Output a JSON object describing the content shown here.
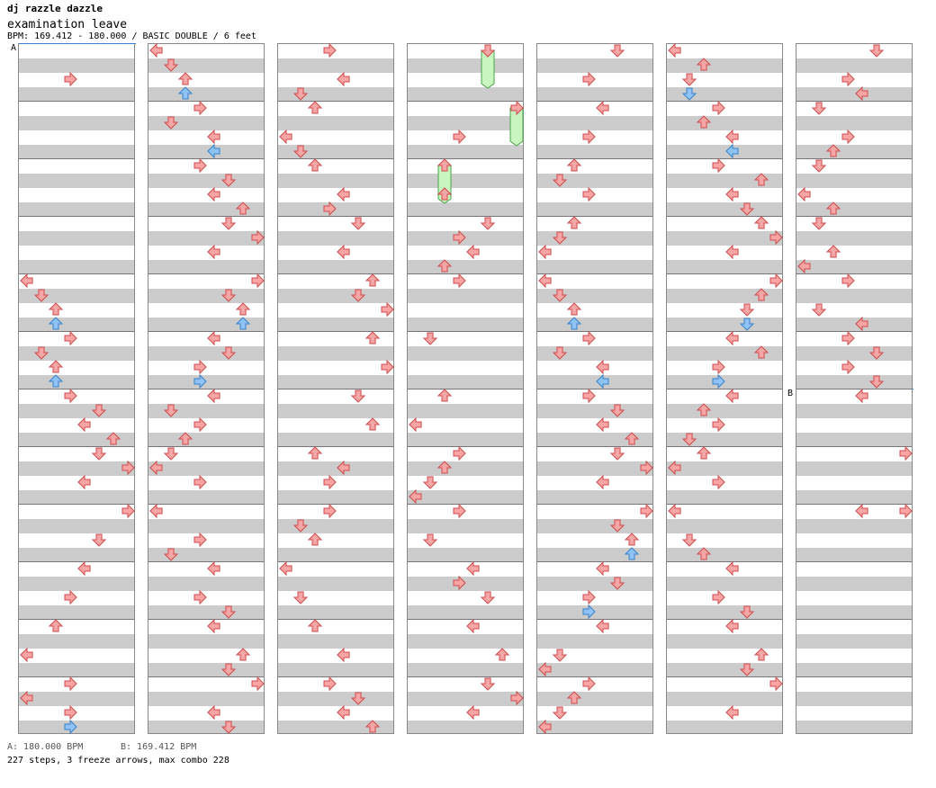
{
  "header": {
    "artist": "dj razzle dazzle",
    "title": "examination leave",
    "info": "BPM: 169.412 - 180.000 / BASIC DOUBLE / 6 feet"
  },
  "footer": {
    "bpm_a": "A: 180.000 BPM",
    "bpm_b": "B: 169.412 BPM",
    "stats": "227 steps, 3 freeze arrows, max combo 228"
  },
  "markers": {
    "a": "A",
    "b": "B"
  },
  "colors": {
    "step": "#f7a5a5",
    "step_edge": "#d04a4a",
    "alt": "#8fc3f5",
    "alt_edge": "#3a82c8",
    "freeze": "#c8f5c0",
    "freeze_edge": "#4ca34c"
  },
  "chart_data": {
    "type": "step-chart",
    "lanes": [
      "L",
      "D",
      "U",
      "R"
    ],
    "arrow_directions": [
      "left",
      "down",
      "up",
      "right"
    ],
    "columns": 7,
    "measures_per_column": 12,
    "steps": [
      [
        0,
        0.5,
        3
      ],
      [
        0,
        4,
        0
      ],
      [
        0,
        4.25,
        1
      ],
      [
        0,
        4.5,
        2
      ],
      [
        0,
        4.75,
        2,
        1
      ],
      [
        0,
        5,
        3
      ],
      [
        0,
        5.25,
        1
      ],
      [
        0,
        5.5,
        2
      ],
      [
        0,
        5.75,
        2,
        1
      ],
      [
        0,
        6,
        3
      ],
      [
        0,
        6.25,
        5
      ],
      [
        0,
        6.5,
        4
      ],
      [
        0,
        6.75,
        6
      ],
      [
        0,
        7,
        5
      ],
      [
        0,
        7.25,
        7
      ],
      [
        0,
        7.5,
        4
      ],
      [
        0,
        8,
        7
      ],
      [
        0,
        8.5,
        5
      ],
      [
        0,
        9,
        4
      ],
      [
        0,
        9.5,
        3
      ],
      [
        0,
        10,
        2
      ],
      [
        0,
        10.5,
        0
      ],
      [
        0,
        11,
        3
      ],
      [
        0,
        11.25,
        0
      ],
      [
        0,
        11.5,
        3
      ],
      [
        0,
        11.75,
        3,
        1
      ],
      [
        1,
        0,
        0
      ],
      [
        1,
        0.25,
        1
      ],
      [
        1,
        0.5,
        2
      ],
      [
        1,
        0.75,
        2,
        1
      ],
      [
        1,
        1,
        3
      ],
      [
        1,
        1.25,
        1
      ],
      [
        1,
        1.5,
        4
      ],
      [
        1,
        1.75,
        4,
        1
      ],
      [
        1,
        2,
        3
      ],
      [
        1,
        2.25,
        5
      ],
      [
        1,
        2.5,
        4
      ],
      [
        1,
        2.75,
        6
      ],
      [
        1,
        3,
        5
      ],
      [
        1,
        3.25,
        7
      ],
      [
        1,
        3.5,
        4
      ],
      [
        1,
        4,
        7
      ],
      [
        1,
        4.25,
        5
      ],
      [
        1,
        4.5,
        6
      ],
      [
        1,
        4.75,
        6,
        1
      ],
      [
        1,
        5,
        4
      ],
      [
        1,
        5.25,
        5
      ],
      [
        1,
        5.5,
        3
      ],
      [
        1,
        5.75,
        3,
        1
      ],
      [
        1,
        6,
        4
      ],
      [
        1,
        6.25,
        1
      ],
      [
        1,
        6.5,
        3
      ],
      [
        1,
        6.75,
        2
      ],
      [
        1,
        7,
        1
      ],
      [
        1,
        7.25,
        0
      ],
      [
        1,
        7.5,
        3
      ],
      [
        1,
        8,
        0
      ],
      [
        1,
        8.5,
        3
      ],
      [
        1,
        8.75,
        1
      ],
      [
        1,
        9,
        4
      ],
      [
        1,
        9.5,
        3
      ],
      [
        1,
        9.75,
        5
      ],
      [
        1,
        10,
        4
      ],
      [
        1,
        10.5,
        6
      ],
      [
        1,
        10.75,
        5
      ],
      [
        1,
        11,
        7
      ],
      [
        1,
        11.5,
        4
      ],
      [
        1,
        11.75,
        5
      ],
      [
        2,
        0,
        3
      ],
      [
        2,
        0.5,
        4
      ],
      [
        2,
        0.75,
        1
      ],
      [
        2,
        1,
        2
      ],
      [
        2,
        1.5,
        0
      ],
      [
        2,
        1.75,
        1
      ],
      [
        2,
        2,
        2
      ],
      [
        2,
        2.5,
        4
      ],
      [
        2,
        2.75,
        3
      ],
      [
        2,
        3,
        5
      ],
      [
        2,
        3.5,
        4
      ],
      [
        2,
        4,
        6
      ],
      [
        2,
        4.25,
        5
      ],
      [
        2,
        4.5,
        7
      ],
      [
        2,
        5,
        6
      ],
      [
        2,
        5.5,
        7
      ],
      [
        2,
        6,
        5
      ],
      [
        2,
        6.5,
        6
      ],
      [
        2,
        7,
        2
      ],
      [
        2,
        7.25,
        4
      ],
      [
        2,
        7.5,
        3
      ],
      [
        2,
        8,
        3
      ],
      [
        2,
        8.25,
        1
      ],
      [
        2,
        8.5,
        2
      ],
      [
        2,
        9,
        0
      ],
      [
        2,
        9.5,
        1
      ],
      [
        2,
        10,
        2
      ],
      [
        2,
        10.5,
        4
      ],
      [
        2,
        11,
        3
      ],
      [
        2,
        11.25,
        5
      ],
      [
        2,
        11.5,
        4
      ],
      [
        2,
        11.75,
        6
      ],
      [
        3,
        1.5,
        3
      ],
      [
        3,
        2.5,
        2
      ],
      [
        3,
        3,
        5
      ],
      [
        3,
        3.25,
        3
      ],
      [
        3,
        3.5,
        4
      ],
      [
        3,
        3.75,
        2
      ],
      [
        3,
        4,
        3
      ],
      [
        3,
        5,
        1
      ],
      [
        3,
        6,
        2
      ],
      [
        3,
        6.5,
        0
      ],
      [
        3,
        7,
        3
      ],
      [
        3,
        7.25,
        2
      ],
      [
        3,
        7.5,
        1
      ],
      [
        3,
        7.75,
        0
      ],
      [
        3,
        8,
        3
      ],
      [
        3,
        8.5,
        1
      ],
      [
        3,
        9,
        4
      ],
      [
        3,
        9.25,
        3
      ],
      [
        3,
        9.5,
        5
      ],
      [
        3,
        10,
        4
      ],
      [
        3,
        10.5,
        6
      ],
      [
        3,
        11,
        5
      ],
      [
        3,
        11.25,
        7
      ],
      [
        3,
        11.5,
        4
      ],
      [
        4,
        0,
        5
      ],
      [
        4,
        0.5,
        3
      ],
      [
        4,
        1,
        4
      ],
      [
        4,
        1.5,
        3
      ],
      [
        4,
        2,
        2
      ],
      [
        4,
        2.25,
        1
      ],
      [
        4,
        2.5,
        3
      ],
      [
        4,
        3,
        2
      ],
      [
        4,
        3.25,
        1
      ],
      [
        4,
        3.5,
        0
      ],
      [
        4,
        4,
        0
      ],
      [
        4,
        4.25,
        1
      ],
      [
        4,
        4.5,
        2
      ],
      [
        4,
        4.75,
        2,
        1
      ],
      [
        4,
        5,
        3
      ],
      [
        4,
        5.25,
        1
      ],
      [
        4,
        5.5,
        4
      ],
      [
        4,
        5.75,
        4,
        1
      ],
      [
        4,
        6,
        3
      ],
      [
        4,
        6.25,
        5
      ],
      [
        4,
        6.5,
        4
      ],
      [
        4,
        6.75,
        6
      ],
      [
        4,
        7,
        5
      ],
      [
        4,
        7.25,
        7
      ],
      [
        4,
        7.5,
        4
      ],
      [
        4,
        8,
        7
      ],
      [
        4,
        8.25,
        5
      ],
      [
        4,
        8.5,
        6
      ],
      [
        4,
        8.75,
        6,
        1
      ],
      [
        4,
        9,
        4
      ],
      [
        4,
        9.25,
        5
      ],
      [
        4,
        9.5,
        3
      ],
      [
        4,
        9.75,
        3,
        1
      ],
      [
        4,
        10,
        4
      ],
      [
        4,
        10.5,
        1
      ],
      [
        4,
        10.75,
        0
      ],
      [
        4,
        11,
        3
      ],
      [
        4,
        11.25,
        2
      ],
      [
        4,
        11.5,
        1
      ],
      [
        4,
        11.75,
        0
      ],
      [
        5,
        0,
        0
      ],
      [
        5,
        0.25,
        2
      ],
      [
        5,
        0.5,
        1
      ],
      [
        5,
        0.75,
        1,
        1
      ],
      [
        5,
        1,
        3
      ],
      [
        5,
        1.25,
        2
      ],
      [
        5,
        1.5,
        4
      ],
      [
        5,
        1.75,
        4,
        1
      ],
      [
        5,
        2,
        3
      ],
      [
        5,
        2.25,
        6
      ],
      [
        5,
        2.5,
        4
      ],
      [
        5,
        2.75,
        5
      ],
      [
        5,
        3,
        6
      ],
      [
        5,
        3.25,
        7
      ],
      [
        5,
        3.5,
        4
      ],
      [
        5,
        4,
        7
      ],
      [
        5,
        4.25,
        6
      ],
      [
        5,
        4.5,
        5
      ],
      [
        5,
        4.75,
        5,
        1
      ],
      [
        5,
        5,
        4
      ],
      [
        5,
        5.25,
        6
      ],
      [
        5,
        5.5,
        3
      ],
      [
        5,
        5.75,
        3,
        1
      ],
      [
        5,
        6,
        4
      ],
      [
        5,
        6.25,
        2
      ],
      [
        5,
        6.5,
        3
      ],
      [
        5,
        6.75,
        1
      ],
      [
        5,
        7,
        2
      ],
      [
        5,
        7.25,
        0
      ],
      [
        5,
        7.5,
        3
      ],
      [
        5,
        8,
        0
      ],
      [
        5,
        8.5,
        1
      ],
      [
        5,
        8.75,
        2
      ],
      [
        5,
        9,
        4
      ],
      [
        5,
        9.5,
        3
      ],
      [
        5,
        9.75,
        5
      ],
      [
        5,
        10,
        4
      ],
      [
        5,
        10.5,
        6
      ],
      [
        5,
        10.75,
        5
      ],
      [
        5,
        11,
        7
      ],
      [
        5,
        11.5,
        4
      ],
      [
        6,
        0,
        5
      ],
      [
        6,
        0.5,
        3
      ],
      [
        6,
        0.75,
        4
      ],
      [
        6,
        1,
        1
      ],
      [
        6,
        1.5,
        3
      ],
      [
        6,
        1.75,
        2
      ],
      [
        6,
        2,
        1
      ],
      [
        6,
        2.5,
        0
      ],
      [
        6,
        2.75,
        2
      ],
      [
        6,
        3,
        1
      ],
      [
        6,
        3.5,
        2
      ],
      [
        6,
        3.75,
        0
      ],
      [
        6,
        4,
        3
      ],
      [
        6,
        4.5,
        1
      ],
      [
        6,
        4.75,
        4
      ],
      [
        6,
        5,
        3
      ],
      [
        6,
        5.25,
        5
      ],
      [
        6,
        5.5,
        3
      ],
      [
        6,
        5.75,
        5
      ],
      [
        6,
        6,
        4
      ],
      [
        6,
        7,
        7
      ],
      [
        6,
        8,
        4
      ],
      [
        6,
        8,
        7
      ]
    ],
    "freezes": [
      [
        3,
        0,
        5,
        0.5
      ],
      [
        3,
        1,
        7,
        1.5
      ],
      [
        3,
        2,
        2,
        2.5
      ]
    ]
  }
}
